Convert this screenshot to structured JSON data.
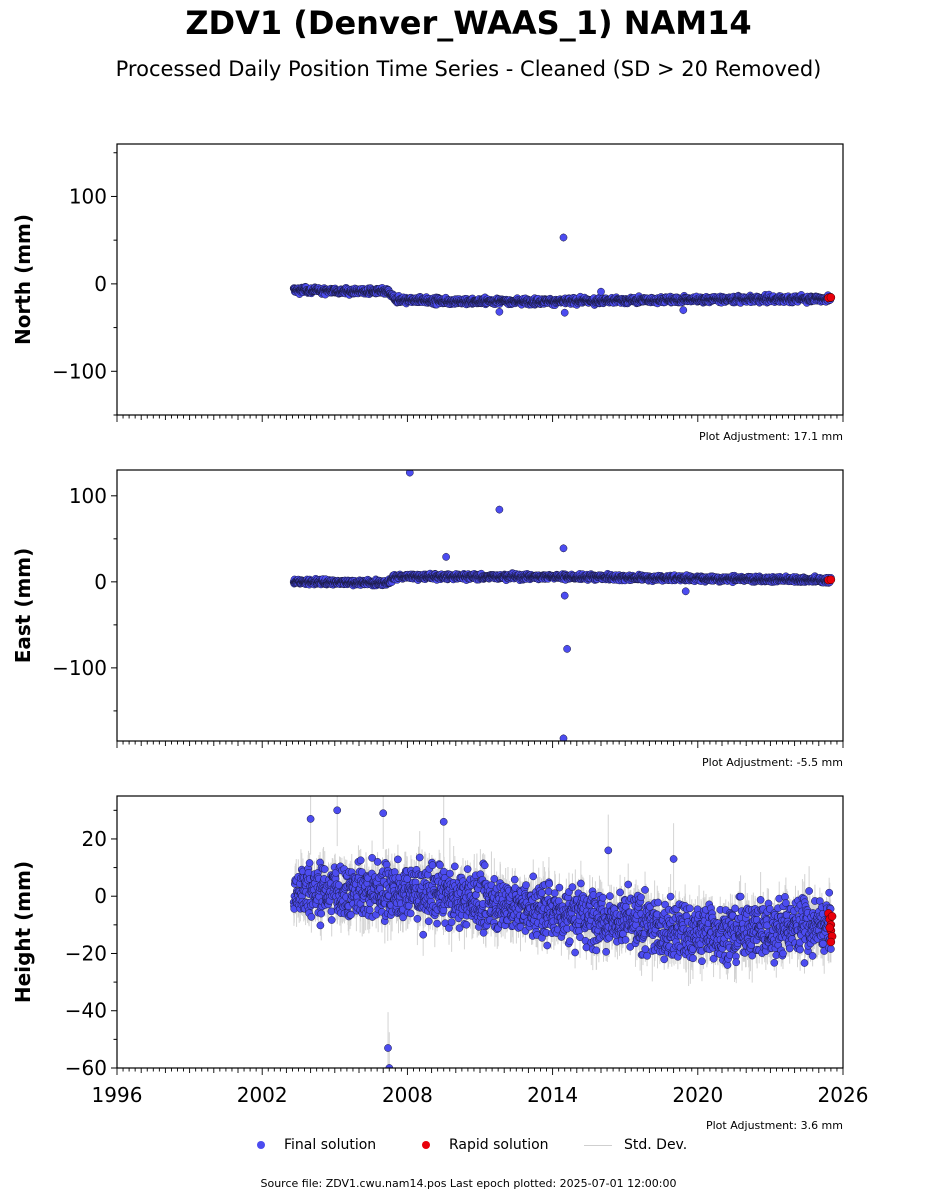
{
  "title": "ZDV1 (Denver_WAAS_1) NAM14",
  "subtitle": "Processed Daily Position Time Series - Cleaned (SD > 20 Removed)",
  "footer": "Source file: ZDV1.cwu.nam14.pos  Last epoch plotted: 2025-07-01 12:00:00",
  "legend": {
    "final": "Final solution",
    "rapid": "Rapid solution",
    "std": "Std. Dev."
  },
  "colors": {
    "final": "#4c4cf0",
    "rapid": "#e8000b",
    "std": "#b0b0b0"
  },
  "chart_data": [
    {
      "type": "scatter",
      "ylabel": "North (mm)",
      "note": "Plot Adjustment: 17.1 mm",
      "xlim": [
        1996,
        2026
      ],
      "ylim": [
        -150,
        160
      ],
      "yticks": [
        -100,
        0,
        100
      ],
      "xticks": [
        1996,
        2002,
        2008,
        2014,
        2020,
        2026
      ],
      "series": [
        {
          "name": "Final solution",
          "trend": [
            [
              2003.3,
              -7
            ],
            [
              2005.0,
              -8
            ],
            [
              2007.2,
              -9
            ],
            [
              2007.5,
              -18
            ],
            [
              2010.0,
              -20
            ],
            [
              2014.0,
              -20
            ],
            [
              2020.0,
              -18
            ],
            [
              2025.5,
              -17
            ]
          ],
          "scatter": 2.5,
          "err": 2
        },
        {
          "name": "Rapid solution",
          "points": [
            [
              2025.4,
              -16
            ],
            [
              2025.5,
              -15.5
            ]
          ]
        }
      ],
      "outliers": [
        [
          2014.45,
          53
        ],
        [
          2011.8,
          -32
        ],
        [
          2014.5,
          -33
        ],
        [
          2019.4,
          -30
        ],
        [
          2016.0,
          -9
        ]
      ]
    },
    {
      "type": "scatter",
      "ylabel": "East (mm)",
      "note": "Plot Adjustment: -5.5 mm",
      "xlim": [
        1996,
        2026
      ],
      "ylim": [
        -185,
        130
      ],
      "yticks": [
        -100,
        0,
        100
      ],
      "xticks": [
        1996,
        2002,
        2008,
        2014,
        2020,
        2026
      ],
      "series": [
        {
          "name": "Final solution",
          "trend": [
            [
              2003.3,
              0
            ],
            [
              2007.2,
              -1
            ],
            [
              2007.5,
              6
            ],
            [
              2014.0,
              6
            ],
            [
              2020.0,
              4
            ],
            [
              2025.5,
              2
            ]
          ],
          "scatter": 2.2,
          "err": 2
        },
        {
          "name": "Rapid solution",
          "points": [
            [
              2025.4,
              2
            ],
            [
              2025.5,
              2.5
            ]
          ]
        }
      ],
      "outliers": [
        [
          2008.1,
          127
        ],
        [
          2011.8,
          84
        ],
        [
          2009.6,
          29
        ],
        [
          2014.45,
          39
        ],
        [
          2014.5,
          -16
        ],
        [
          2014.6,
          -78
        ],
        [
          2014.45,
          -182
        ],
        [
          2019.5,
          -11
        ]
      ]
    },
    {
      "type": "scatter",
      "ylabel": "Height (mm)",
      "note": "Plot Adjustment: 3.6 mm",
      "xlim": [
        1996,
        2026
      ],
      "ylim": [
        -60,
        35
      ],
      "yticks": [
        -60,
        -40,
        -20,
        0,
        20
      ],
      "xticks": [
        1996,
        2002,
        2008,
        2014,
        2020,
        2026
      ],
      "series": [
        {
          "name": "Final solution",
          "trend": [
            [
              2003.3,
              2
            ],
            [
              2008.0,
              2
            ],
            [
              2014.0,
              -5
            ],
            [
              2020.0,
              -13
            ],
            [
              2025.5,
              -10
            ]
          ],
          "scatter": 7,
          "err": 5
        },
        {
          "name": "Rapid solution",
          "points": [
            [
              2025.4,
              -6
            ],
            [
              2025.45,
              -8
            ],
            [
              2025.5,
              -10
            ],
            [
              2025.5,
              -12
            ],
            [
              2025.55,
              -14
            ],
            [
              2025.5,
              -16
            ],
            [
              2025.45,
              -11
            ],
            [
              2025.55,
              -7
            ]
          ]
        }
      ],
      "outliers": [
        [
          2007.2,
          -53
        ],
        [
          2007.25,
          -60
        ],
        [
          2005.1,
          30
        ],
        [
          2007.0,
          29
        ],
        [
          2004.0,
          27
        ],
        [
          2009.5,
          26
        ],
        [
          2016.3,
          16
        ],
        [
          2019.0,
          13
        ]
      ]
    }
  ]
}
